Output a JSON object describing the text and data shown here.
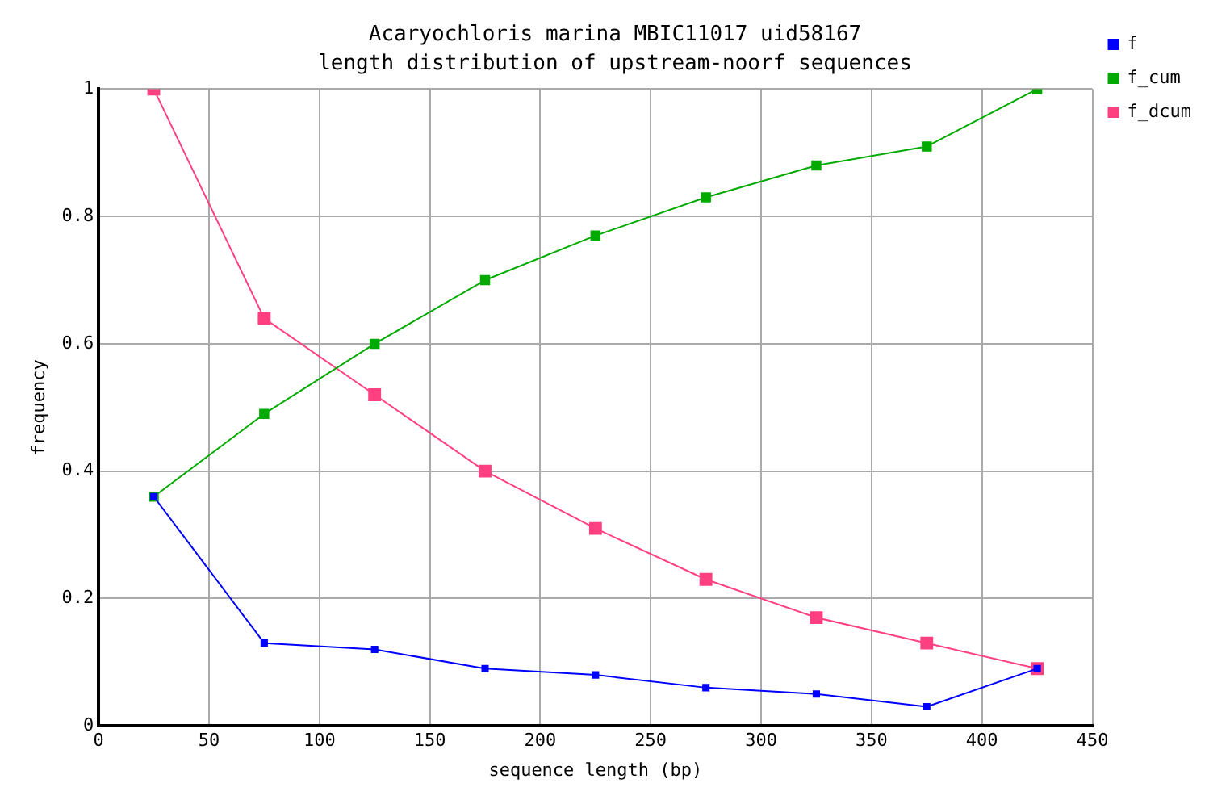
{
  "chart_data": {
    "type": "line",
    "title": "Acaryochloris marina MBIC11017 uid58167",
    "subtitle": "length distribution of upstream-noorf sequences",
    "xlabel": "sequence length (bp)",
    "ylabel": "frequency",
    "x": [
      25,
      75,
      125,
      175,
      225,
      275,
      325,
      375,
      425
    ],
    "series": [
      {
        "name": "f",
        "color": "#0000ff",
        "values": [
          0.36,
          0.13,
          0.12,
          0.09,
          0.08,
          0.06,
          0.05,
          0.03,
          0.09
        ]
      },
      {
        "name": "f_cum",
        "color": "#00aa00",
        "values": [
          0.36,
          0.49,
          0.6,
          0.7,
          0.77,
          0.83,
          0.88,
          0.91,
          1.0
        ]
      },
      {
        "name": "f_dcum",
        "color": "#ff4080",
        "values": [
          1.0,
          0.64,
          0.52,
          0.4,
          0.31,
          0.23,
          0.17,
          0.13,
          0.09
        ]
      }
    ],
    "xlim": [
      0,
      450
    ],
    "xticks": [
      0,
      50,
      100,
      150,
      200,
      250,
      300,
      350,
      400,
      450
    ],
    "ylim": [
      0,
      1
    ],
    "yticks": [
      0,
      0.2,
      0.4,
      0.6,
      0.8,
      1
    ],
    "grid": true,
    "legend": "top right",
    "marker": "square",
    "line_style": "solid"
  }
}
